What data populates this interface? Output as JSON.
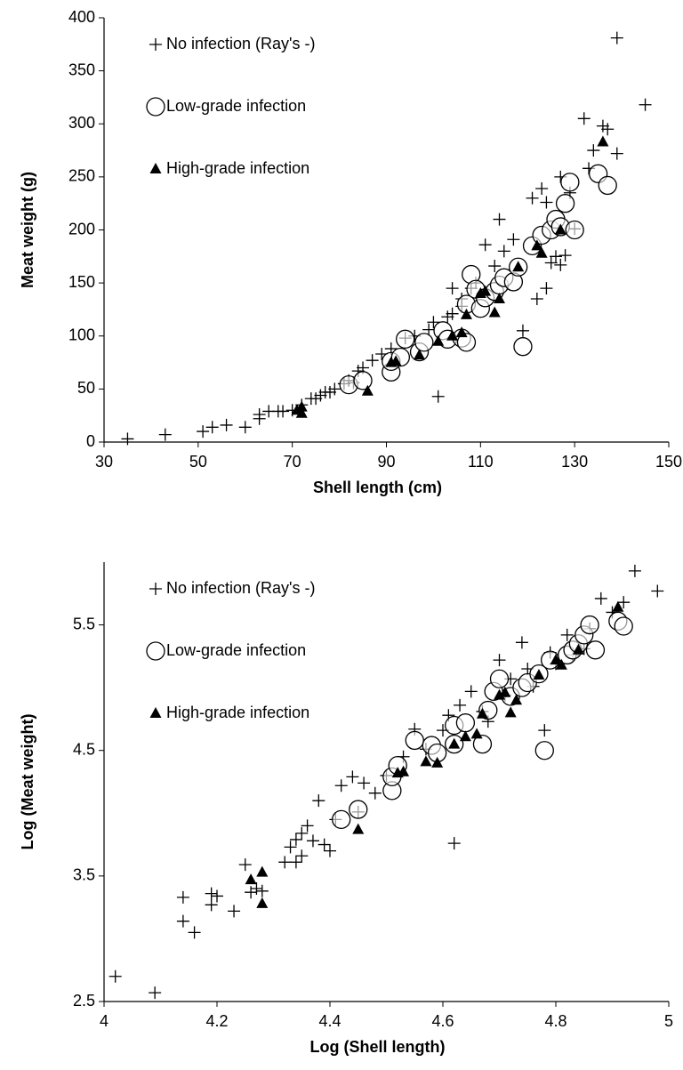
{
  "chart_data": [
    {
      "type": "scatter",
      "xlabel": "Shell length (cm)",
      "ylabel": "Meat weight (g)",
      "xlim": [
        30,
        150
      ],
      "ylim": [
        0,
        400
      ],
      "xticks": [
        30,
        50,
        70,
        90,
        110,
        130,
        150
      ],
      "yticks": [
        0,
        50,
        100,
        150,
        200,
        250,
        300,
        350,
        400
      ],
      "legend": "upper left",
      "series": [
        {
          "name": "No infection (Ray's -)",
          "marker": "plus",
          "color": "#000000",
          "x": [
            35,
            43,
            51,
            53,
            56,
            60,
            63,
            63,
            65,
            67,
            68,
            70,
            72,
            74,
            75,
            76,
            77,
            78,
            79,
            81,
            82,
            83,
            84,
            85,
            87,
            89,
            91,
            94,
            96,
            99,
            100,
            101,
            103,
            104,
            104,
            106,
            106,
            108,
            109,
            111,
            113,
            114,
            115,
            117,
            119,
            121,
            122,
            123,
            124,
            124,
            125,
            126,
            127,
            127,
            128,
            129,
            130,
            132,
            133,
            134,
            136,
            137,
            139,
            139,
            145
          ],
          "y": [
            3,
            7,
            10,
            14,
            16,
            14,
            26,
            22,
            29,
            29,
            29,
            30,
            35,
            41,
            41,
            44,
            47,
            47,
            50,
            55,
            58,
            56,
            67,
            70,
            77,
            83,
            88,
            98,
            100,
            106,
            113,
            43,
            118,
            121,
            145,
            128,
            135,
            145,
            150,
            186,
            166,
            210,
            180,
            191,
            105,
            230,
            135,
            239,
            226,
            145,
            169,
            175,
            167,
            250,
            176,
            235,
            201,
            305,
            258,
            275,
            298,
            295,
            272,
            381,
            318
          ]
        },
        {
          "name": "Low-grade infection",
          "marker": "circle",
          "color": "#000000",
          "x": [
            82,
            85,
            91,
            91,
            93,
            94,
            97,
            98,
            102,
            103,
            106,
            107,
            107,
            108,
            109,
            110,
            111,
            113,
            114,
            115,
            117,
            118,
            119,
            121,
            123,
            125,
            126,
            127,
            128,
            129,
            130,
            135,
            137
          ],
          "y": [
            54,
            58,
            66,
            76,
            80,
            97,
            85,
            94,
            105,
            97,
            98,
            94,
            130,
            158,
            144,
            126,
            136,
            142,
            148,
            155,
            151,
            165,
            90,
            185,
            195,
            200,
            210,
            203,
            225,
            245,
            200,
            253,
            242
          ]
        },
        {
          "name": "High-grade infection",
          "marker": "triangle",
          "color": "#000000",
          "x": [
            71,
            72,
            72,
            86,
            91,
            92,
            97,
            101,
            104,
            106,
            107,
            110,
            111,
            113,
            114,
            118,
            122,
            123,
            127,
            136
          ],
          "y": [
            30,
            33,
            27,
            48,
            75,
            76,
            82,
            95,
            100,
            103,
            120,
            140,
            142,
            122,
            135,
            165,
            185,
            178,
            200,
            283
          ]
        }
      ]
    },
    {
      "type": "scatter",
      "xlabel": "Log (Shell length)",
      "ylabel": "Log (Meat weight)",
      "xlim": [
        4,
        5
      ],
      "ylim": [
        2.5,
        6
      ],
      "xticks": [
        4,
        4.2,
        4.4,
        4.6,
        4.8,
        5
      ],
      "yticks": [
        2.5,
        3.5,
        4.5,
        5.5
      ],
      "legend": "upper left",
      "series": [
        {
          "name": "No infection (Ray's -)",
          "marker": "plus",
          "color": "#000000",
          "x": [
            4.02,
            4.09,
            4.14,
            4.14,
            4.16,
            4.19,
            4.19,
            4.2,
            4.23,
            4.25,
            4.26,
            4.27,
            4.28,
            4.32,
            4.33,
            4.34,
            4.34,
            4.35,
            4.35,
            4.36,
            4.37,
            4.38,
            4.39,
            4.4,
            4.41,
            4.42,
            4.44,
            4.45,
            4.46,
            4.48,
            4.5,
            4.53,
            4.55,
            4.57,
            4.6,
            4.61,
            4.62,
            4.63,
            4.65,
            4.67,
            4.68,
            4.7,
            4.71,
            4.72,
            4.74,
            4.75,
            4.76,
            4.78,
            4.79,
            4.8,
            4.82,
            4.83,
            4.85,
            4.86,
            4.88,
            4.9,
            4.92,
            4.94,
            4.98
          ],
          "y": [
            2.7,
            2.57,
            3.33,
            3.14,
            3.05,
            3.36,
            3.27,
            3.34,
            3.22,
            3.59,
            3.37,
            3.4,
            3.38,
            3.61,
            3.73,
            3.61,
            3.79,
            3.66,
            3.84,
            3.9,
            3.78,
            4.1,
            3.75,
            3.7,
            3.95,
            4.22,
            4.29,
            4.01,
            4.24,
            4.16,
            4.3,
            4.45,
            4.67,
            4.51,
            4.66,
            4.78,
            3.76,
            4.86,
            4.97,
            4.81,
            4.73,
            5.22,
            4.94,
            5.07,
            5.36,
            5.15,
            5.01,
            4.66,
            5.28,
            5.19,
            5.42,
            5.26,
            5.31,
            5.47,
            5.71,
            5.6,
            5.68,
            5.93,
            5.77
          ]
        },
        {
          "name": "Low-grade infection",
          "marker": "circle",
          "color": "#000000",
          "x": [
            4.42,
            4.45,
            4.51,
            4.51,
            4.52,
            4.55,
            4.58,
            4.59,
            4.62,
            4.62,
            4.64,
            4.67,
            4.68,
            4.69,
            4.7,
            4.72,
            4.74,
            4.75,
            4.77,
            4.78,
            4.79,
            4.82,
            4.83,
            4.84,
            4.85,
            4.86,
            4.87,
            4.91,
            4.92
          ],
          "y": [
            3.95,
            4.03,
            4.18,
            4.29,
            4.38,
            4.58,
            4.54,
            4.48,
            4.55,
            4.7,
            4.72,
            4.55,
            4.82,
            4.97,
            5.07,
            4.93,
            5.0,
            5.04,
            5.11,
            4.5,
            5.22,
            5.26,
            5.3,
            5.35,
            5.42,
            5.5,
            5.3,
            5.53,
            5.49
          ]
        },
        {
          "name": "High-grade infection",
          "marker": "triangle",
          "color": "#000000",
          "x": [
            4.26,
            4.28,
            4.28,
            4.45,
            4.52,
            4.53,
            4.57,
            4.59,
            4.62,
            4.64,
            4.66,
            4.67,
            4.7,
            4.71,
            4.72,
            4.73,
            4.77,
            4.8,
            4.81,
            4.84,
            4.91
          ],
          "y": [
            3.47,
            3.53,
            3.28,
            3.87,
            4.32,
            4.33,
            4.41,
            4.4,
            4.55,
            4.61,
            4.63,
            4.79,
            4.94,
            4.96,
            4.8,
            4.9,
            5.1,
            5.22,
            5.18,
            5.3,
            5.64
          ]
        }
      ]
    }
  ]
}
